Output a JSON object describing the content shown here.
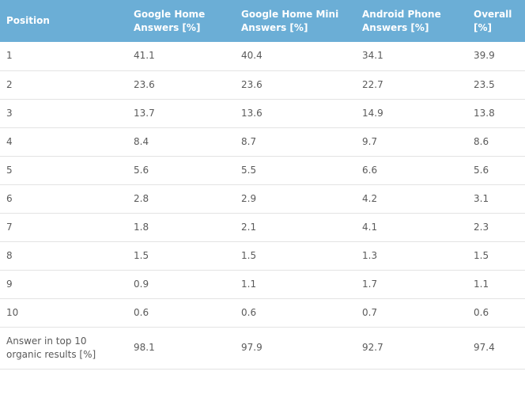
{
  "table": {
    "headers": [
      "Position",
      "Google Home Answers [%]",
      "Google Home Mini Answers [%]",
      "Android Phone Answers [%]",
      "Overall [%]"
    ],
    "rows": [
      [
        "1",
        "41.1",
        "40.4",
        "34.1",
        "39.9"
      ],
      [
        "2",
        "23.6",
        "23.6",
        "22.7",
        "23.5"
      ],
      [
        "3",
        "13.7",
        "13.6",
        "14.9",
        "13.8"
      ],
      [
        "4",
        "8.4",
        "8.7",
        "9.7",
        "8.6"
      ],
      [
        "5",
        "5.6",
        "5.5",
        "6.6",
        "5.6"
      ],
      [
        "6",
        "2.8",
        "2.9",
        "4.2",
        "3.1"
      ],
      [
        "7",
        "1.8",
        "2.1",
        "4.1",
        "2.3"
      ],
      [
        "8",
        "1.5",
        "1.5",
        "1.3",
        "1.5"
      ],
      [
        "9",
        "0.9",
        "1.1",
        "1.7",
        "1.1"
      ],
      [
        "10",
        "0.6",
        "0.6",
        "0.7",
        "0.6"
      ],
      [
        "Answer in top 10 organic results [%]",
        "98.1",
        "97.9",
        "92.7",
        "97.4"
      ]
    ],
    "colors": {
      "header_bg": "#6baed6",
      "header_text": "#ffffff",
      "body_text": "#5a5a5a",
      "row_border": "#e3e3e3"
    }
  }
}
